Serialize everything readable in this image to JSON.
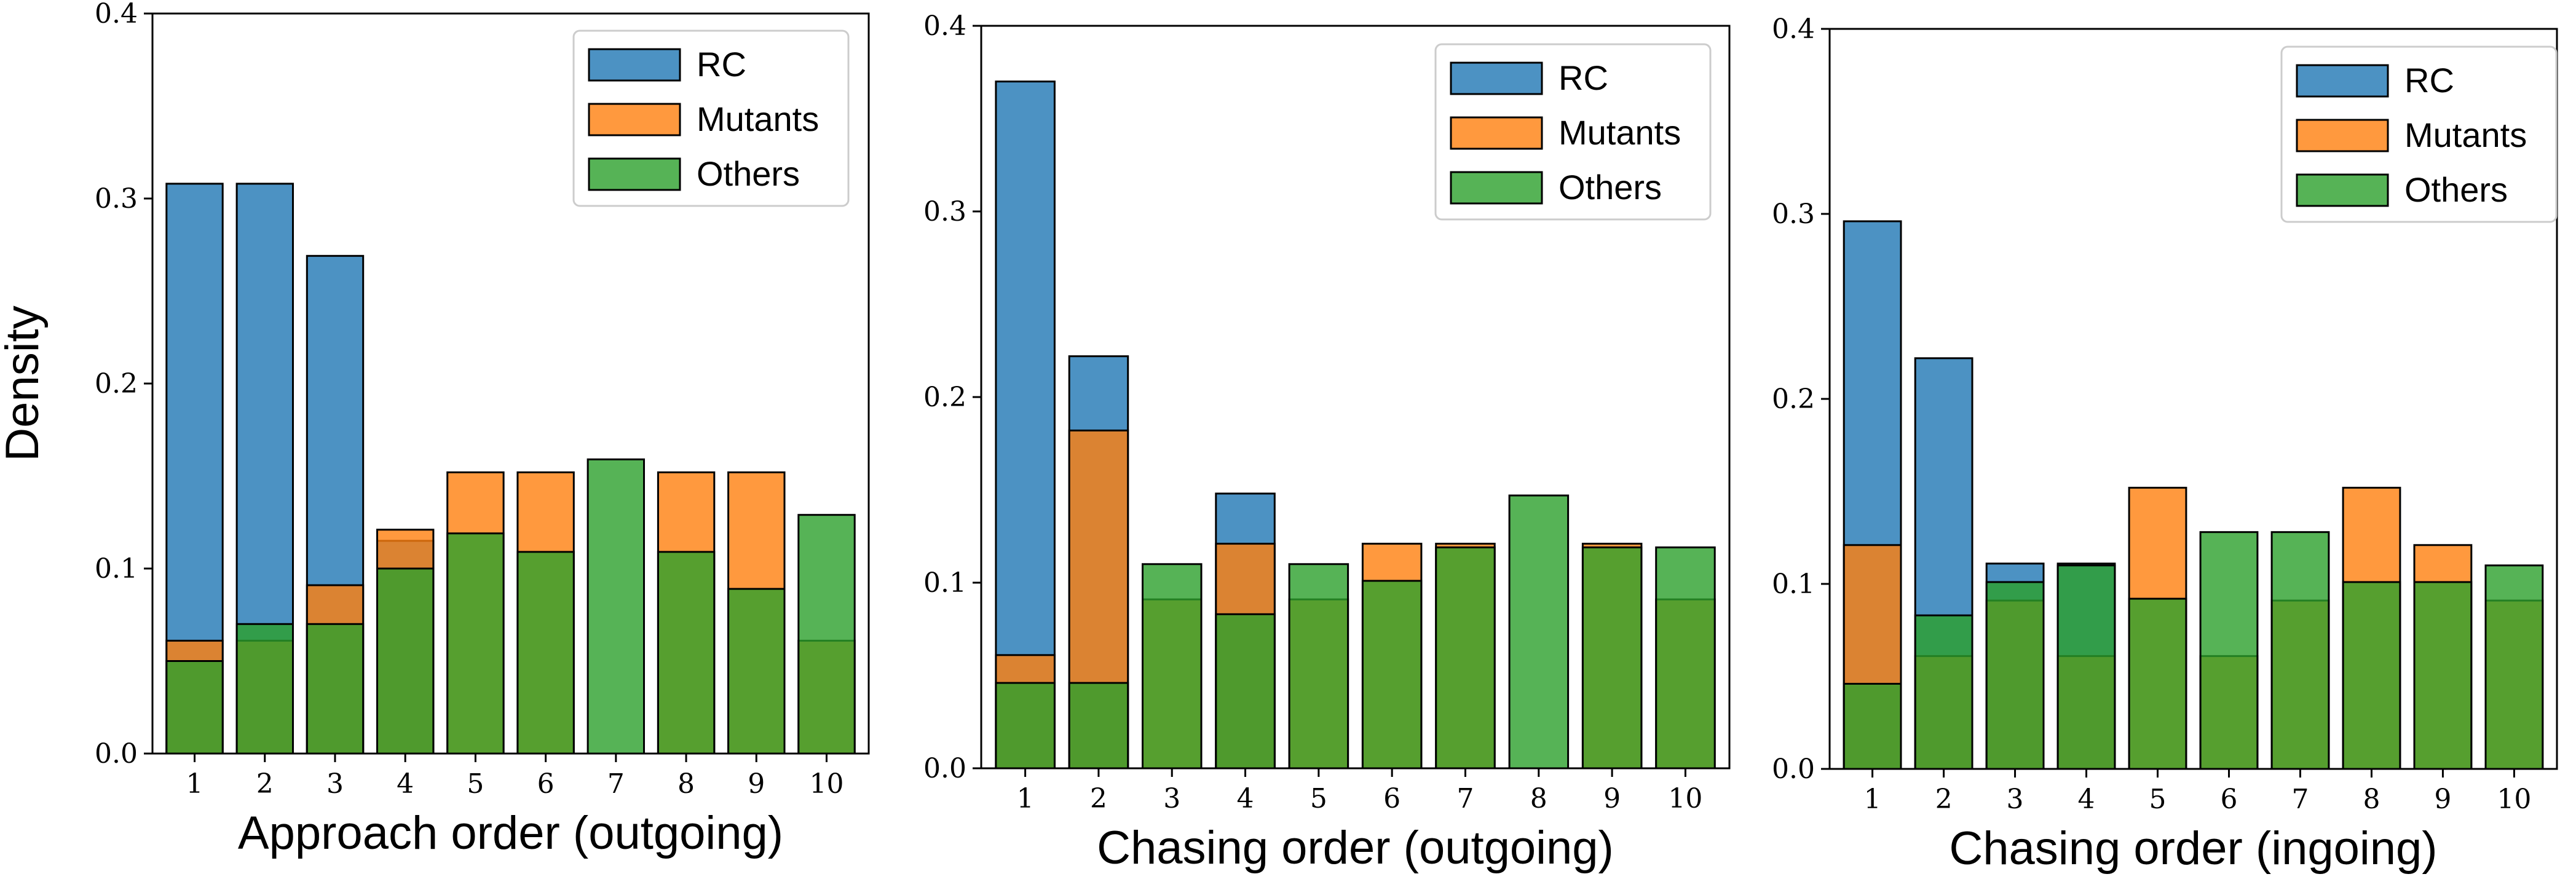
{
  "chart_data": [
    {
      "type": "bar",
      "xlabel": "Approach order (outgoing)",
      "ylabel": "Density",
      "ylim": [
        0,
        0.4
      ],
      "yticks": [
        0.0,
        0.1,
        0.2,
        0.3,
        0.4
      ],
      "categories": [
        1,
        2,
        3,
        4,
        5,
        6,
        7,
        8,
        9,
        10
      ],
      "legend": "top-right",
      "series": [
        {
          "name": "RC",
          "values": [
            0.308,
            0.308,
            0.269,
            0.115,
            0,
            0,
            0,
            0,
            0,
            0
          ]
        },
        {
          "name": "Mutants",
          "values": [
            0.061,
            0.061,
            0.091,
            0.121,
            0.152,
            0.152,
            0,
            0.152,
            0.152,
            0.061
          ]
        },
        {
          "name": "Others",
          "values": [
            0.05,
            0.07,
            0.07,
            0.1,
            0.119,
            0.109,
            0.159,
            0.109,
            0.089,
            0.129
          ]
        }
      ]
    },
    {
      "type": "bar",
      "xlabel": "Chasing order (outgoing)",
      "ylabel": "",
      "ylim": [
        0,
        0.4
      ],
      "yticks": [
        0.0,
        0.1,
        0.2,
        0.3,
        0.4
      ],
      "categories": [
        1,
        2,
        3,
        4,
        5,
        6,
        7,
        8,
        9,
        10
      ],
      "legend": "top-right",
      "series": [
        {
          "name": "RC",
          "values": [
            0.37,
            0.222,
            0,
            0.148,
            0,
            0,
            0,
            0,
            0,
            0
          ]
        },
        {
          "name": "Mutants",
          "values": [
            0.061,
            0.182,
            0.091,
            0.121,
            0.091,
            0.121,
            0.121,
            0,
            0.121,
            0.091
          ]
        },
        {
          "name": "Others",
          "values": [
            0.046,
            0.046,
            0.11,
            0.083,
            0.11,
            0.101,
            0.119,
            0.147,
            0.119,
            0.119
          ]
        }
      ]
    },
    {
      "type": "bar",
      "xlabel": "Chasing order (ingoing)",
      "ylabel": "",
      "ylim": [
        0,
        0.4
      ],
      "yticks": [
        0.0,
        0.1,
        0.2,
        0.3,
        0.4
      ],
      "categories": [
        1,
        2,
        3,
        4,
        5,
        6,
        7,
        8,
        9,
        10
      ],
      "legend": "top-right",
      "series": [
        {
          "name": "RC",
          "values": [
            0.296,
            0.222,
            0.111,
            0.111,
            0,
            0,
            0,
            0,
            0,
            0
          ]
        },
        {
          "name": "Mutants",
          "values": [
            0.121,
            0.061,
            0.091,
            0.061,
            0.152,
            0.061,
            0.091,
            0.152,
            0.121,
            0.091
          ]
        },
        {
          "name": "Others",
          "values": [
            0.046,
            0.083,
            0.101,
            0.11,
            0.092,
            0.128,
            0.128,
            0.101,
            0.101,
            0.11
          ]
        }
      ]
    }
  ],
  "colors": {
    "RC": "#1f77b4",
    "Mutants": "#ff7f0e",
    "Others": "#2ca02c"
  }
}
